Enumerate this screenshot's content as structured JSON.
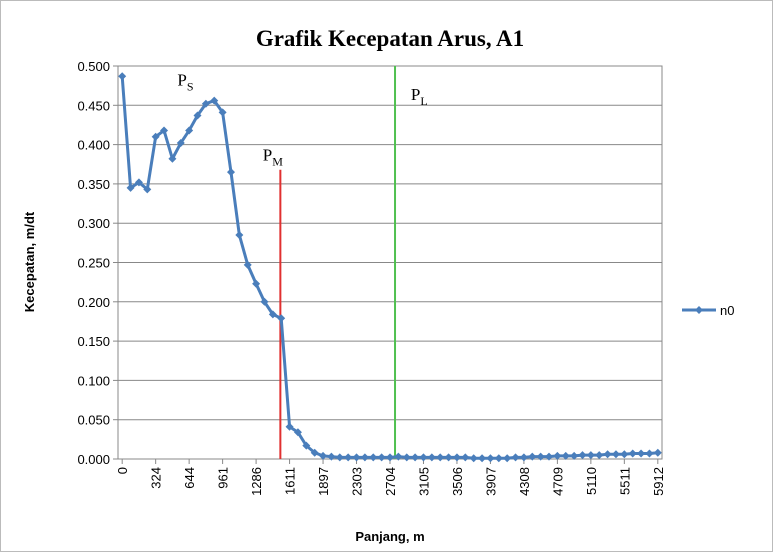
{
  "chart_data": {
    "type": "line",
    "title": "Grafik Kecepatan Arus, A1",
    "x_label": "Panjang, m",
    "y_label": "Kecepatan, m/dt",
    "categories": [
      "0",
      null,
      null,
      null,
      "324",
      null,
      null,
      null,
      "644",
      null,
      null,
      null,
      "961",
      null,
      null,
      null,
      "1286",
      null,
      null,
      null,
      "1611",
      null,
      null,
      null,
      "1897",
      null,
      null,
      null,
      "2303",
      null,
      null,
      null,
      "2704",
      null,
      null,
      null,
      "3105",
      null,
      null,
      null,
      "3506",
      null,
      null,
      null,
      "3907",
      null,
      null,
      null,
      "4308",
      null,
      null,
      null,
      "4709",
      null,
      null,
      null,
      "5110",
      null,
      null,
      null,
      "5511",
      null,
      null,
      null,
      "5912"
    ],
    "series": [
      {
        "name": "n0",
        "color": "#4a7ebb",
        "values": [
          0.487,
          0.345,
          0.352,
          0.343,
          0.41,
          0.418,
          0.382,
          0.402,
          0.418,
          0.437,
          0.452,
          0.456,
          0.441,
          0.365,
          0.285,
          0.247,
          0.223,
          0.2,
          0.184,
          0.179,
          0.041,
          0.034,
          0.017,
          0.008,
          0.004,
          0.003,
          0.002,
          0.002,
          0.002,
          0.002,
          0.002,
          0.002,
          0.002,
          0.003,
          0.002,
          0.002,
          0.002,
          0.002,
          0.002,
          0.002,
          0.002,
          0.002,
          0.001,
          0.001,
          0.001,
          0.001,
          0.001,
          0.002,
          0.002,
          0.003,
          0.003,
          0.003,
          0.004,
          0.004,
          0.004,
          0.005,
          0.005,
          0.005,
          0.006,
          0.006,
          0.006,
          0.007,
          0.007,
          0.007,
          0.008
        ]
      }
    ],
    "ylim": [
      0,
      0.5
    ],
    "yticks": [
      {
        "value": 0,
        "label": "0.000"
      },
      {
        "value": 0.05,
        "label": "0.050"
      },
      {
        "value": 0.1,
        "label": "0.100"
      },
      {
        "value": 0.15,
        "label": "0.150"
      },
      {
        "value": 0.2,
        "label": "0.200"
      },
      {
        "value": 0.25,
        "label": "0.250"
      },
      {
        "value": 0.3,
        "label": "0.300"
      },
      {
        "value": 0.35,
        "label": "0.350"
      },
      {
        "value": 0.4,
        "label": "0.400"
      },
      {
        "value": 0.45,
        "label": "0.450"
      },
      {
        "value": 0.5,
        "label": "0.500"
      }
    ],
    "grid": true,
    "legend": "right",
    "vlines": [
      {
        "x": 18.9,
        "y": [
          0,
          0.368
        ],
        "color": "#e03030"
      },
      {
        "x": 32.6,
        "y": [
          0,
          0.5
        ],
        "color": "#50c050"
      }
    ],
    "annotations": [
      {
        "text": "P",
        "sub": "S",
        "x": 6.6,
        "y": 0.475
      },
      {
        "text": "P",
        "sub": "M",
        "x": 16.8,
        "y": 0.38
      },
      {
        "text": "P",
        "sub": "L",
        "x": 34.5,
        "y": 0.457
      }
    ]
  }
}
